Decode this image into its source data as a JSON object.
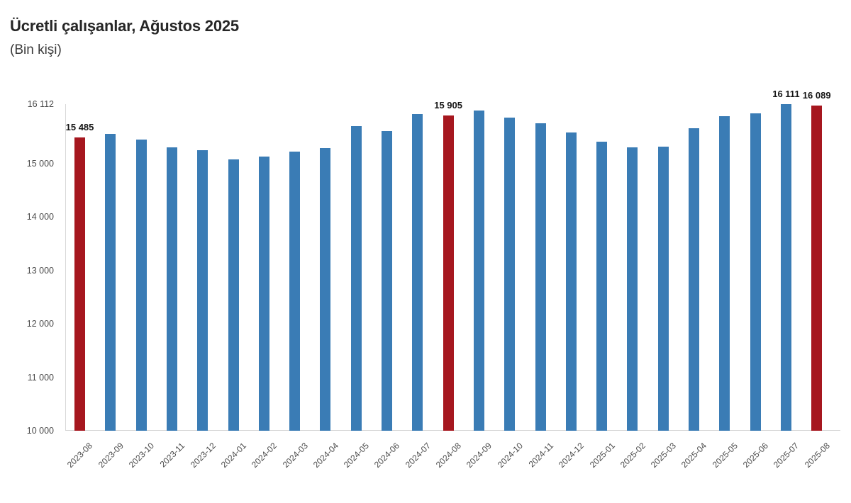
{
  "title": "Ücretli çalışanlar, Ağustos 2025",
  "subtitle": "(Bin kişi)",
  "colors": {
    "bar": "#3A7CB5",
    "highlight": "#A6171F",
    "axis_line": "#d9d9d9",
    "tick_text": "#4a4a4a",
    "label_text": "#151515"
  },
  "chart_data": {
    "type": "bar",
    "title": "Ücretli çalışanlar, Ağustos 2025",
    "subtitle": "(Bin kişi)",
    "xlabel": "",
    "ylabel": "",
    "grid": false,
    "legend": false,
    "ylim": [
      10000,
      16112
    ],
    "categories": [
      "2023-08",
      "2023-09",
      "2023-10",
      "2023-11",
      "2023-12",
      "2024-01",
      "2024-02",
      "2024-03",
      "2024-04",
      "2024-05",
      "2024-06",
      "2024-07",
      "2024-08",
      "2024-09",
      "2024-10",
      "2024-11",
      "2024-12",
      "2025-01",
      "2025-02",
      "2025-03",
      "2025-04",
      "2025-05",
      "2025-06",
      "2025-07",
      "2025-08"
    ],
    "values": [
      15485,
      15555,
      15445,
      15300,
      15245,
      15080,
      15135,
      15220,
      15290,
      15695,
      15610,
      15920,
      15905,
      15990,
      15855,
      15750,
      15585,
      15405,
      15300,
      15315,
      15665,
      15885,
      15940,
      16111,
      16089
    ],
    "highlighted_categories": [
      "2023-08",
      "2024-08",
      "2025-08"
    ],
    "bar_labels": {
      "2023-08": "15 485",
      "2024-08": "15 905",
      "2025-07": "16 111",
      "2025-08": "16 089"
    },
    "yticks": [
      {
        "value": 16112,
        "label": "16 112"
      },
      {
        "value": 15000,
        "label": "15 000"
      },
      {
        "value": 14000,
        "label": "14 000"
      },
      {
        "value": 13000,
        "label": "13 000"
      },
      {
        "value": 12000,
        "label": "12 000"
      },
      {
        "value": 11000,
        "label": "11 000"
      },
      {
        "value": 10000,
        "label": "10 000"
      }
    ]
  }
}
